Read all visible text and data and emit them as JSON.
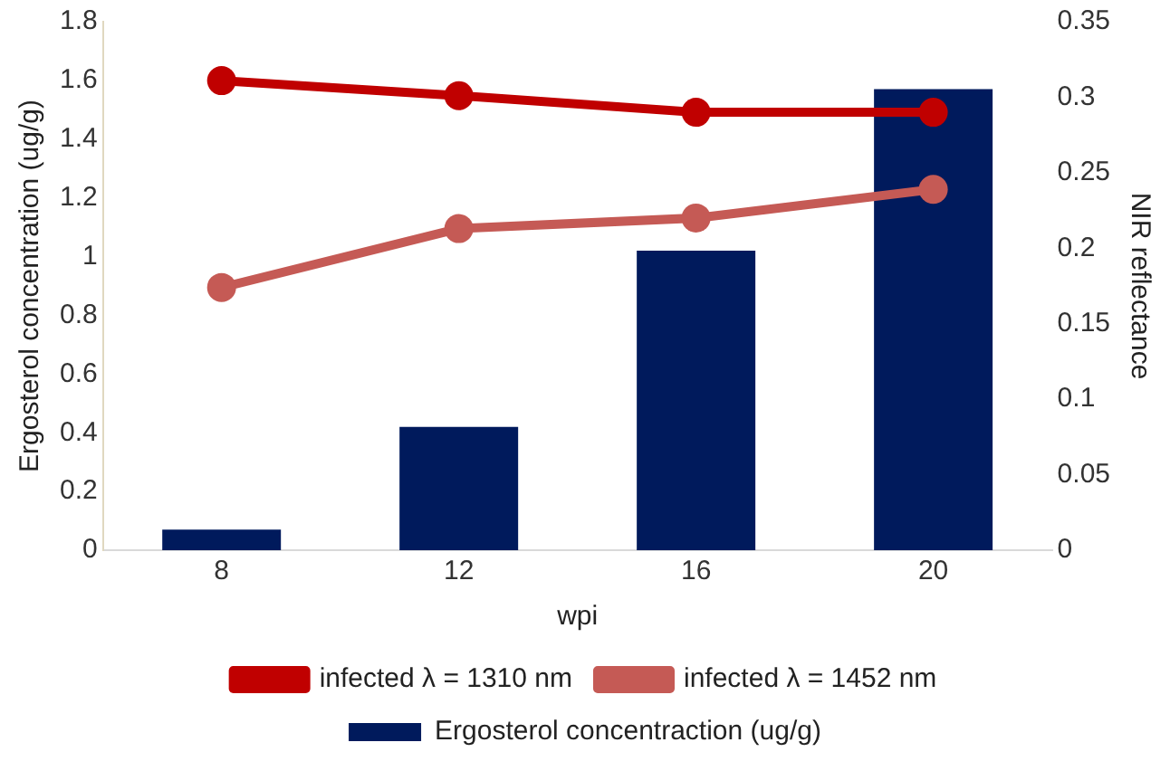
{
  "chart_data": {
    "type": "bar",
    "xlabel": "wpi",
    "ylabel": "Ergosterol concentration (ug/g)",
    "y2label": "NIR reflectance",
    "categories": [
      "8",
      "12",
      "16",
      "20"
    ],
    "series": [
      {
        "name": "Ergosterol concentraction (ug/g)",
        "color": "#001a5c",
        "values": [
          0.07,
          0.42,
          1.02,
          1.57
        ]
      },
      {
        "name": "infected λ = 1310 nm",
        "type": "line",
        "axis": "y2",
        "color": "#c00000",
        "values": [
          0.311,
          0.301,
          0.29,
          0.29
        ]
      },
      {
        "name": "infected λ = 1452 nm",
        "type": "line",
        "axis": "y2",
        "color": "#c55a55",
        "values": [
          0.174,
          0.213,
          0.22,
          0.239
        ]
      }
    ],
    "ylim": [
      0,
      1.8
    ],
    "yticks": [
      0,
      0.2,
      0.4,
      0.6,
      0.8,
      1,
      1.2,
      1.4,
      1.6,
      1.8
    ],
    "y2lim": [
      0,
      0.35
    ],
    "y2ticks": [
      0,
      0.05,
      0.1,
      0.15,
      0.2,
      0.25,
      0.3,
      0.35
    ],
    "grid": false,
    "legend": "bottom",
    "marker": "circle"
  }
}
